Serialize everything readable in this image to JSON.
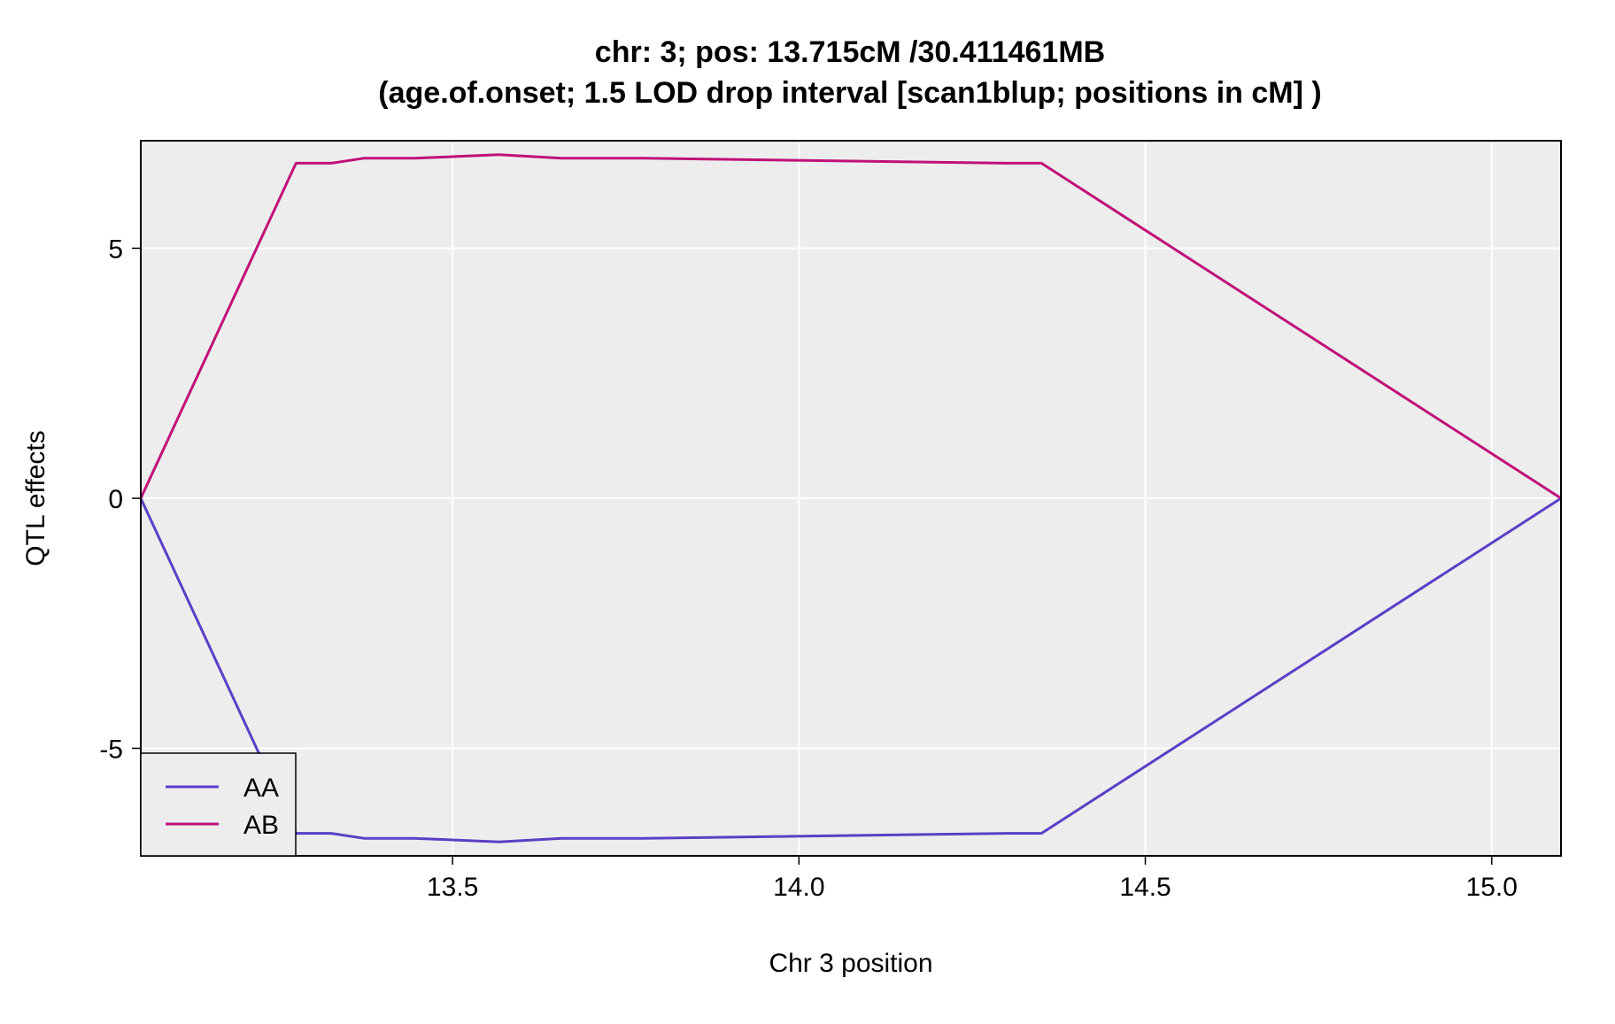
{
  "chart_data": {
    "type": "line",
    "title_line1": "chr: 3; pos: 13.715cM /30.411461MB",
    "title_line2": "(age.of.onset; 1.5 LOD drop interval [scan1blup; positions in cM] )",
    "xlabel": "Chr 3 position",
    "ylabel": "QTL effects",
    "xlim": [
      13.05,
      15.1
    ],
    "ylim": [
      -7.15,
      7.15
    ],
    "xticks": [
      13.5,
      14.0,
      14.5,
      15.0
    ],
    "xtick_labels": [
      "13.5",
      "14.0",
      "14.5",
      "15.0"
    ],
    "yticks": [
      -5,
      0,
      5
    ],
    "ytick_labels": [
      "-5",
      "0",
      "5"
    ],
    "grid": true,
    "legend_position": "bottom-left",
    "colors": {
      "panel_bg": "#ededed",
      "grid": "#ffffff"
    },
    "series": [
      {
        "name": "AA",
        "color": "#5a3fc6",
        "x": [
          13.05,
          13.274,
          13.325,
          13.372,
          13.445,
          13.567,
          13.657,
          13.775,
          14.3,
          14.35,
          15.1
        ],
        "y": [
          0.0,
          -6.7,
          -6.7,
          -6.8,
          -6.8,
          -6.87,
          -6.8,
          -6.8,
          -6.7,
          -6.7,
          0.0
        ]
      },
      {
        "name": "AB",
        "color": "#c0117a",
        "x": [
          13.05,
          13.274,
          13.325,
          13.372,
          13.445,
          13.567,
          13.657,
          13.775,
          14.3,
          14.35,
          15.1
        ],
        "y": [
          0.0,
          6.7,
          6.7,
          6.8,
          6.8,
          6.87,
          6.8,
          6.8,
          6.7,
          6.7,
          0.0
        ]
      }
    ]
  }
}
